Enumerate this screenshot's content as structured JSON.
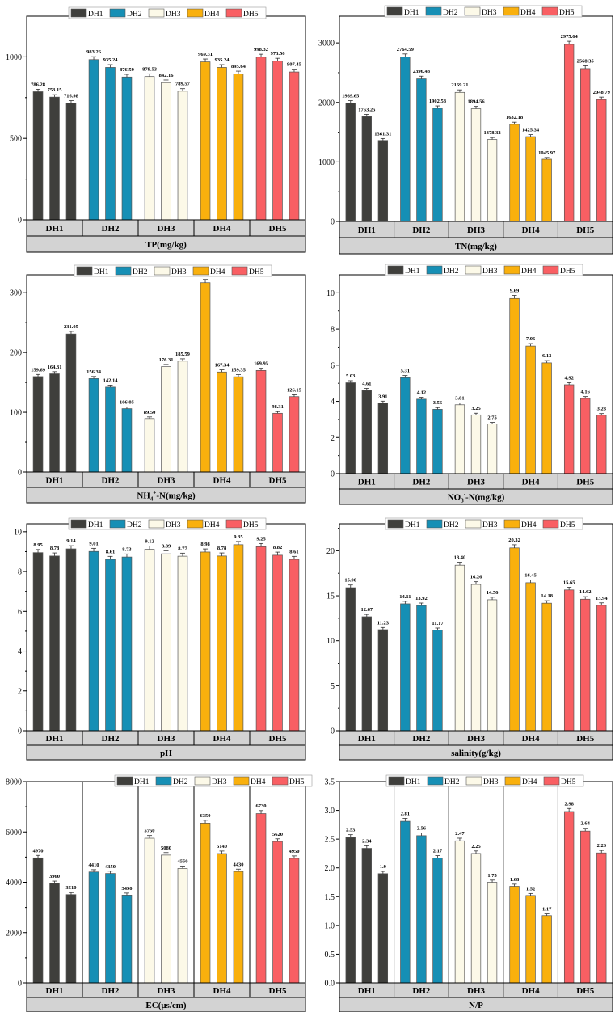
{
  "colors": {
    "DH1": "#3f3f3c",
    "DH2": "#168fb5",
    "DH3": "#fcf9e8",
    "DH4": "#f9b00d",
    "DH5": "#f95f63",
    "frame": "#000000",
    "strip": "#d3d3d3"
  },
  "legend": [
    "DH1",
    "DH2",
    "DH3",
    "DH4",
    "DH5"
  ],
  "chart_data": [
    {
      "type": "bar",
      "title": "TP(mg/kg)",
      "categories": [
        "DH1",
        "DH2",
        "DH3",
        "DH4",
        "DH5"
      ],
      "ylim": [
        0,
        1250
      ],
      "yticks": [
        0,
        500,
        1000
      ],
      "subticks": [
        250,
        750
      ],
      "series_values": [
        [
          786.28,
          753.15,
          716.98
        ],
        [
          983.26,
          935.24,
          876.59
        ],
        [
          879.53,
          842.16,
          789.57
        ],
        [
          969.31,
          935.24,
          895.64
        ],
        [
          998.32,
          973.56,
          907.45
        ]
      ],
      "labels": [
        [
          "786.28",
          "753.15",
          "716.98"
        ],
        [
          "983.26",
          "935.24",
          "876.59"
        ],
        [
          "879.53",
          "842.16",
          "789.57"
        ],
        [
          "969.31",
          "935.24",
          "895.64"
        ],
        [
          "998.32",
          "973.56",
          "907.45"
        ]
      ],
      "tick_labels": [
        "0",
        "500",
        "1000"
      ]
    },
    {
      "type": "bar",
      "title": "TN(mg/kg)",
      "categories": [
        "DH1",
        "DH2",
        "DH3",
        "DH4",
        "DH5"
      ],
      "ylim": [
        0,
        3450
      ],
      "yticks": [
        0,
        1000,
        2000,
        3000
      ],
      "subticks": [
        500,
        1500,
        2500
      ],
      "series_values": [
        [
          1989.65,
          1763.25,
          1361.31
        ],
        [
          2764.59,
          2396.48,
          1902.58
        ],
        [
          2169.21,
          1894.56,
          1378.32
        ],
        [
          1632.18,
          1425.34,
          1045.97
        ],
        [
          2975.64,
          2568.35,
          2048.79
        ]
      ],
      "labels": [
        [
          "1989.65",
          "1763.25",
          "1361.31"
        ],
        [
          "2764.59",
          "2396.48",
          "1902.58"
        ],
        [
          "2169.21",
          "1894.56",
          "1378.32"
        ],
        [
          "1632.18",
          "1425.34",
          "1045.97"
        ],
        [
          "2975.64",
          "2568.35",
          "2048.79"
        ]
      ],
      "tick_labels": [
        "0",
        "1000",
        "2000",
        "3000"
      ]
    },
    {
      "type": "bar",
      "title_parts": [
        "NH",
        "4",
        "+",
        "-N(mg/kg)"
      ],
      "categories": [
        "DH1",
        "DH2",
        "DH3",
        "DH4",
        "DH5"
      ],
      "ylim": [
        0,
        330
      ],
      "yticks": [
        0,
        100,
        200,
        300
      ],
      "subticks": [
        50,
        150,
        250
      ],
      "series_values": [
        [
          159.69,
          164.31,
          231.05
        ],
        [
          156.34,
          142.14,
          106.05
        ],
        [
          89.5,
          176.31,
          185.59
        ],
        [
          316.85,
          167.34,
          159.35
        ],
        [
          169.95,
          98.31,
          126.15
        ]
      ],
      "labels": [
        [
          "159.69",
          "164.31",
          "231.05"
        ],
        [
          "156.34",
          "142.14",
          "106.05"
        ],
        [
          "89.50",
          "176.31",
          "185.59"
        ],
        [
          "316.85",
          "167.34",
          "159.35"
        ],
        [
          "169.95",
          "98.31",
          "126.15"
        ]
      ],
      "tick_labels": [
        "0",
        "100",
        "200",
        "300"
      ]
    },
    {
      "type": "bar",
      "title_parts": [
        "NO",
        "3",
        "-",
        "-N(mg/kg)"
      ],
      "categories": [
        "DH1",
        "DH2",
        "DH3",
        "DH4",
        "DH5"
      ],
      "ylim": [
        0,
        11
      ],
      "yticks": [
        0,
        2,
        4,
        6,
        8,
        10
      ],
      "subticks": [
        1,
        3,
        5,
        7,
        9
      ],
      "series_values": [
        [
          5.03,
          4.61,
          3.91
        ],
        [
          5.31,
          4.12,
          3.56
        ],
        [
          3.81,
          3.25,
          2.75
        ],
        [
          9.69,
          7.06,
          6.13
        ],
        [
          4.92,
          4.16,
          3.23
        ]
      ],
      "labels": [
        [
          "5.03",
          "4.61",
          "3.91"
        ],
        [
          "5.31",
          "4.12",
          "3.56"
        ],
        [
          "3.81",
          "3.25",
          "2.75"
        ],
        [
          "9.69",
          "7.06",
          "6.13"
        ],
        [
          "4.92",
          "4.16",
          "3.23"
        ]
      ],
      "tick_labels": [
        "0",
        "2",
        "4",
        "6",
        "8",
        "10"
      ]
    },
    {
      "type": "bar",
      "title": "pH",
      "categories": [
        "DH1",
        "DH2",
        "DH3",
        "DH4",
        "DH5"
      ],
      "ylim": [
        0,
        10.4
      ],
      "yticks": [
        0,
        2,
        4,
        6,
        8,
        10
      ],
      "subticks": [
        1,
        3,
        5,
        7,
        9
      ],
      "series_values": [
        [
          8.95,
          8.78,
          9.14
        ],
        [
          9.01,
          8.61,
          8.73
        ],
        [
          9.12,
          8.89,
          8.77
        ],
        [
          8.98,
          8.78,
          9.35
        ],
        [
          9.25,
          8.82,
          8.61
        ]
      ],
      "labels": [
        [
          "8.95",
          "8.78",
          "9.14"
        ],
        [
          "9.01",
          "8.61",
          "8.73"
        ],
        [
          "9.12",
          "8.89",
          "8.77"
        ],
        [
          "8.98",
          "8.78",
          "9.35"
        ],
        [
          "9.25",
          "8.82",
          "8.61"
        ]
      ],
      "tick_labels": [
        "0",
        "2",
        "4",
        "6",
        "8",
        "10"
      ]
    },
    {
      "type": "bar",
      "title": "salinity(g/kg)",
      "categories": [
        "DH1",
        "DH2",
        "DH3",
        "DH4",
        "DH5"
      ],
      "ylim": [
        0,
        23
      ],
      "yticks": [
        0,
        5,
        10,
        15,
        20
      ],
      "subticks": [
        2.5,
        7.5,
        12.5,
        17.5,
        22.5
      ],
      "series_values": [
        [
          15.9,
          12.67,
          11.23
        ],
        [
          14.11,
          13.92,
          11.17
        ],
        [
          18.4,
          16.26,
          14.56
        ],
        [
          20.32,
          16.45,
          14.18
        ],
        [
          15.65,
          14.62,
          13.94
        ]
      ],
      "labels": [
        [
          "15.90",
          "12.67",
          "11.23"
        ],
        [
          "14.11",
          "13.92",
          "11.17"
        ],
        [
          "18.40",
          "16.26",
          "14.56"
        ],
        [
          "20.32",
          "16.45",
          "14.18"
        ],
        [
          "15.65",
          "14.62",
          "13.94"
        ]
      ],
      "tick_labels": [
        "0",
        "5",
        "10",
        "15",
        "20"
      ]
    },
    {
      "type": "bar",
      "title": "EC(μs/cm)",
      "categories": [
        "DH1",
        "DH2",
        "DH3",
        "DH4",
        "DH5"
      ],
      "ylim": [
        0,
        8000
      ],
      "yticks": [
        0,
        2000,
        4000,
        6000,
        8000
      ],
      "subticks": [
        1000,
        3000,
        5000,
        7000
      ],
      "separators": true,
      "series_values": [
        [
          4970,
          3960,
          3510
        ],
        [
          4410,
          4350,
          3490
        ],
        [
          5750,
          5080,
          4550
        ],
        [
          6350,
          5140,
          4430
        ],
        [
          6730,
          5620,
          4950
        ]
      ],
      "labels": [
        [
          "4970",
          "3960",
          "3510"
        ],
        [
          "4410",
          "4350",
          "3490"
        ],
        [
          "5750",
          "5080",
          "4550"
        ],
        [
          "6350",
          "5140",
          "4430"
        ],
        [
          "6730",
          "5620",
          "4950"
        ]
      ],
      "tick_labels": [
        "0",
        "2000",
        "4000",
        "6000",
        "8000"
      ]
    },
    {
      "type": "bar",
      "title": "N/P",
      "categories": [
        "DH1",
        "DH2",
        "DH3",
        "DH4",
        "DH5"
      ],
      "ylim": [
        0,
        3.5
      ],
      "yticks": [
        0,
        0.5,
        1,
        1.5,
        2,
        2.5,
        3,
        3.5
      ],
      "subticks": [],
      "separators": true,
      "series_values": [
        [
          2.53,
          2.34,
          1.9
        ],
        [
          2.81,
          2.56,
          2.17
        ],
        [
          2.47,
          2.25,
          1.75
        ],
        [
          1.68,
          1.52,
          1.17
        ],
        [
          2.98,
          2.64,
          2.26
        ]
      ],
      "labels": [
        [
          "2.53",
          "2.34",
          "1.9"
        ],
        [
          "2.81",
          "2.56",
          "2.17"
        ],
        [
          "2.47",
          "2.25",
          "1.75"
        ],
        [
          "1.68",
          "1.52",
          "1.17"
        ],
        [
          "2.98",
          "2.64",
          "2.26"
        ]
      ],
      "tick_labels": [
        "0.0",
        "0.5",
        "1.0",
        "1.5",
        "2.0",
        "2.5",
        "3.0",
        "3.5"
      ]
    }
  ]
}
